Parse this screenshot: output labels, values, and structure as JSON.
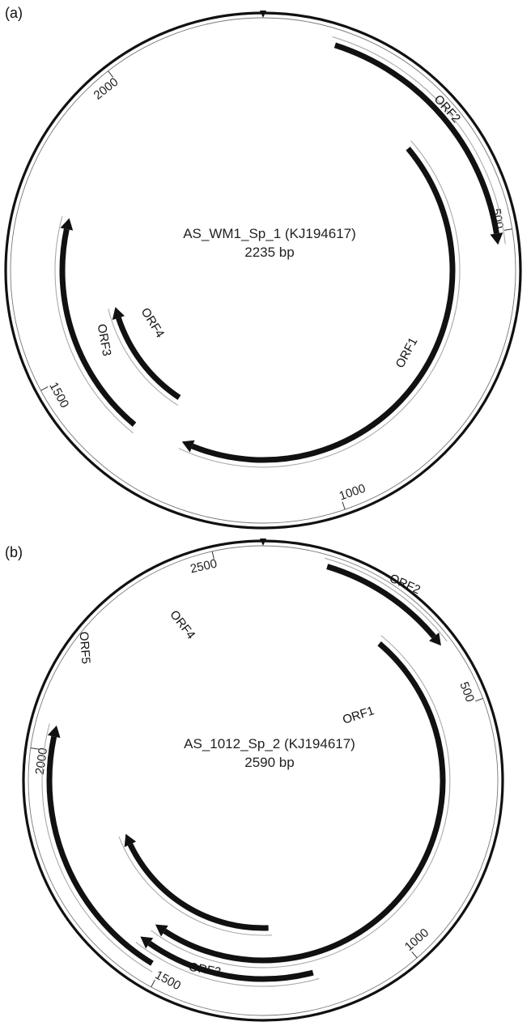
{
  "panels": [
    {
      "label": "(a)",
      "name": "AS_WM1_Sp_1 (KJ194617)",
      "size": "2235 bp",
      "length": 2235,
      "ticks": [
        {
          "pos": 500,
          "label": "500"
        },
        {
          "pos": 1000,
          "label": "1000"
        },
        {
          "pos": 1500,
          "label": "1500"
        },
        {
          "pos": 2000,
          "label": "2000"
        }
      ],
      "orfs": [
        {
          "label": "ORF1",
          "start": 310,
          "end": 1275,
          "strand": "+"
        },
        {
          "label": "ORF2",
          "start": 110,
          "end": 520,
          "strand": "+"
        },
        {
          "label": "ORF3",
          "start": 1365,
          "end": 1770,
          "strand": "+"
        },
        {
          "label": "ORF4",
          "start": 1325,
          "end": 1590,
          "strand": "+"
        }
      ]
    },
    {
      "label": "(b)",
      "name": "AS_1012_Sp_2 (KJ194617)",
      "size": "2590 bp",
      "length": 2590,
      "ticks": [
        {
          "pos": 500,
          "label": "500"
        },
        {
          "pos": 1000,
          "label": "1000"
        },
        {
          "pos": 1500,
          "label": "1500"
        },
        {
          "pos": 2000,
          "label": "2000"
        },
        {
          "pos": 2500,
          "label": "2500"
        }
      ],
      "orfs": [
        {
          "label": "ORF1",
          "start": 290,
          "end": 1560,
          "strand": "+"
        },
        {
          "label": "ORF2",
          "start": 120,
          "end": 380,
          "strand": "+"
        },
        {
          "label": "ORF3",
          "start": 1190,
          "end": 1570,
          "strand": "+"
        },
        {
          "label": "ORF4",
          "start": 1280,
          "end": 1790,
          "strand": "+"
        },
        {
          "label": "ORF5",
          "start": 1520,
          "end": 2050,
          "strand": "+"
        }
      ]
    }
  ]
}
